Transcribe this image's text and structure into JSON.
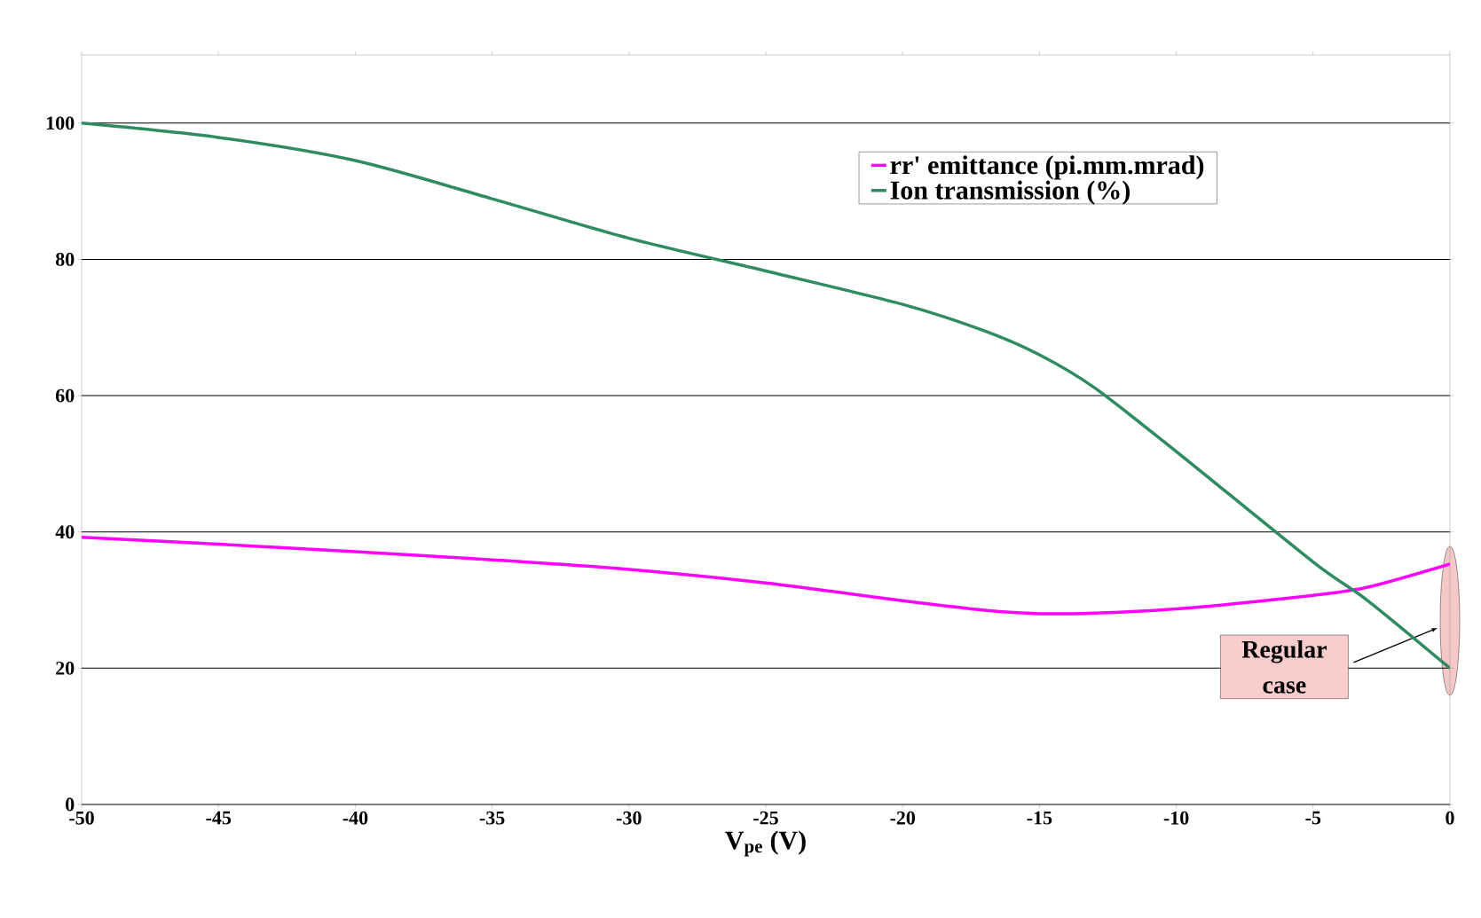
{
  "chart_data": {
    "type": "line",
    "xlabel": "V$_{pe}$ (V)",
    "x": [
      -50,
      -45,
      -40,
      -35,
      -30,
      -25,
      -20,
      -17,
      -15,
      -13,
      -10,
      -5,
      -3,
      0
    ],
    "series": [
      {
        "name": "rr' emittance (pi.mm.mrad)",
        "color": "#ff00ff",
        "values": [
          39.2,
          38.2,
          37.1,
          35.9,
          34.5,
          32.5,
          29.9,
          28.5,
          28,
          28.1,
          28.7,
          30.7,
          31.9,
          35.3
        ]
      },
      {
        "name": "Ion transmission (%)",
        "color": "#2e8b62",
        "values": [
          100,
          97.9,
          94.5,
          88.9,
          83.1,
          78.3,
          73.4,
          69.5,
          66,
          61.2,
          51.8,
          35.6,
          29.9,
          20
        ]
      }
    ],
    "xlim": [
      -50,
      0
    ],
    "xticks": [
      -50,
      -45,
      -40,
      -35,
      -30,
      -25,
      -20,
      -15,
      -10,
      -5,
      0
    ],
    "ylim": [
      0,
      110
    ],
    "yticks": [
      0,
      20,
      40,
      60,
      80,
      100
    ],
    "grid": "y",
    "legend": "top right",
    "marker": "none",
    "line_style": "solid",
    "annotations": [
      "Regular case"
    ]
  }
}
